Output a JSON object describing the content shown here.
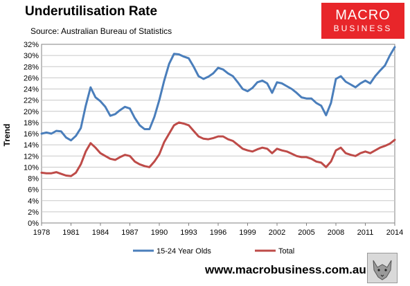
{
  "header": {
    "title": "Underutilisation Rate",
    "source": "Source: Australian Bureau of Statistics"
  },
  "logo": {
    "line1": "MACRO",
    "line2": "BUSINESS",
    "color": "#e8262a"
  },
  "footer": {
    "url": "www.macrobusiness.com.au",
    "icon": "wolf-icon"
  },
  "chart_data": {
    "type": "line",
    "title": "Underutilisation Rate",
    "ylabel": "Trend",
    "xlabel": "",
    "xlim": [
      1978,
      2014
    ],
    "ylim": [
      0,
      32
    ],
    "x_ticks": [
      "1978",
      "1981",
      "1984",
      "1987",
      "1990",
      "1993",
      "1996",
      "1999",
      "2002",
      "2005",
      "2008",
      "2011",
      "2014"
    ],
    "y_ticks": [
      "0%",
      "2%",
      "4%",
      "6%",
      "8%",
      "10%",
      "12%",
      "14%",
      "16%",
      "18%",
      "20%",
      "22%",
      "24%",
      "26%",
      "28%",
      "30%",
      "32%"
    ],
    "grid": true,
    "legend_position": "bottom",
    "series": [
      {
        "name": "15-24 Year Olds",
        "color": "#4a7ebb",
        "points": [
          [
            1978,
            16.0
          ],
          [
            1978.5,
            16.2
          ],
          [
            1979,
            16.0
          ],
          [
            1979.5,
            16.5
          ],
          [
            1980,
            16.4
          ],
          [
            1980.5,
            15.3
          ],
          [
            1981,
            14.8
          ],
          [
            1981.5,
            15.6
          ],
          [
            1982,
            17.0
          ],
          [
            1982.5,
            21.0
          ],
          [
            1983,
            24.3
          ],
          [
            1983.5,
            22.5
          ],
          [
            1984,
            21.8
          ],
          [
            1984.5,
            20.8
          ],
          [
            1985,
            19.2
          ],
          [
            1985.5,
            19.5
          ],
          [
            1986,
            20.2
          ],
          [
            1986.5,
            20.8
          ],
          [
            1987,
            20.5
          ],
          [
            1987.5,
            18.8
          ],
          [
            1988,
            17.5
          ],
          [
            1988.5,
            16.8
          ],
          [
            1989,
            16.8
          ],
          [
            1989.5,
            19.0
          ],
          [
            1990,
            22.0
          ],
          [
            1990.5,
            25.5
          ],
          [
            1991,
            28.5
          ],
          [
            1991.5,
            30.3
          ],
          [
            1992,
            30.2
          ],
          [
            1992.5,
            29.8
          ],
          [
            1993,
            29.5
          ],
          [
            1993.5,
            28.0
          ],
          [
            1994,
            26.3
          ],
          [
            1994.5,
            25.8
          ],
          [
            1995,
            26.2
          ],
          [
            1995.5,
            26.8
          ],
          [
            1996,
            27.8
          ],
          [
            1996.5,
            27.5
          ],
          [
            1997,
            26.8
          ],
          [
            1997.5,
            26.3
          ],
          [
            1998,
            25.2
          ],
          [
            1998.5,
            24.0
          ],
          [
            1999,
            23.6
          ],
          [
            1999.5,
            24.2
          ],
          [
            2000,
            25.2
          ],
          [
            2000.5,
            25.5
          ],
          [
            2001,
            25.0
          ],
          [
            2001.5,
            23.3
          ],
          [
            2002,
            25.2
          ],
          [
            2002.5,
            25.0
          ],
          [
            2003,
            24.5
          ],
          [
            2003.5,
            24.0
          ],
          [
            2004,
            23.3
          ],
          [
            2004.5,
            22.5
          ],
          [
            2005,
            22.3
          ],
          [
            2005.5,
            22.3
          ],
          [
            2006,
            21.5
          ],
          [
            2006.5,
            21.0
          ],
          [
            2007,
            19.3
          ],
          [
            2007.5,
            21.5
          ],
          [
            2008,
            25.8
          ],
          [
            2008.5,
            26.3
          ],
          [
            2009,
            25.3
          ],
          [
            2009.5,
            24.8
          ],
          [
            2010,
            24.3
          ],
          [
            2010.5,
            25.0
          ],
          [
            2011,
            25.5
          ],
          [
            2011.5,
            25.0
          ],
          [
            2012,
            26.3
          ],
          [
            2012.5,
            27.3
          ],
          [
            2013,
            28.2
          ],
          [
            2013.5,
            30.0
          ],
          [
            2014,
            31.5
          ]
        ]
      },
      {
        "name": "Total",
        "color": "#be4b48",
        "points": [
          [
            1978,
            9.0
          ],
          [
            1978.5,
            8.9
          ],
          [
            1979,
            8.9
          ],
          [
            1979.5,
            9.1
          ],
          [
            1980,
            8.8
          ],
          [
            1980.5,
            8.5
          ],
          [
            1981,
            8.4
          ],
          [
            1981.5,
            9.0
          ],
          [
            1982,
            10.5
          ],
          [
            1982.5,
            12.8
          ],
          [
            1983,
            14.3
          ],
          [
            1983.5,
            13.5
          ],
          [
            1984,
            12.5
          ],
          [
            1984.5,
            12.0
          ],
          [
            1985,
            11.5
          ],
          [
            1985.5,
            11.3
          ],
          [
            1986,
            11.8
          ],
          [
            1986.5,
            12.2
          ],
          [
            1987,
            12.0
          ],
          [
            1987.5,
            11.0
          ],
          [
            1988,
            10.5
          ],
          [
            1988.5,
            10.2
          ],
          [
            1989,
            10.0
          ],
          [
            1989.5,
            11.0
          ],
          [
            1990,
            12.3
          ],
          [
            1990.5,
            14.5
          ],
          [
            1991,
            16.0
          ],
          [
            1991.5,
            17.5
          ],
          [
            1992,
            18.0
          ],
          [
            1992.5,
            17.8
          ],
          [
            1993,
            17.5
          ],
          [
            1993.5,
            16.5
          ],
          [
            1994,
            15.5
          ],
          [
            1994.5,
            15.1
          ],
          [
            1995,
            15.0
          ],
          [
            1995.5,
            15.2
          ],
          [
            1996,
            15.5
          ],
          [
            1996.5,
            15.5
          ],
          [
            1997,
            15.0
          ],
          [
            1997.5,
            14.7
          ],
          [
            1998,
            14.0
          ],
          [
            1998.5,
            13.3
          ],
          [
            1999,
            13.0
          ],
          [
            1999.5,
            12.8
          ],
          [
            2000,
            13.2
          ],
          [
            2000.5,
            13.5
          ],
          [
            2001,
            13.3
          ],
          [
            2001.5,
            12.5
          ],
          [
            2002,
            13.3
          ],
          [
            2002.5,
            13.0
          ],
          [
            2003,
            12.8
          ],
          [
            2003.5,
            12.4
          ],
          [
            2004,
            12.0
          ],
          [
            2004.5,
            11.8
          ],
          [
            2005,
            11.8
          ],
          [
            2005.5,
            11.5
          ],
          [
            2006,
            11.0
          ],
          [
            2006.5,
            10.8
          ],
          [
            2007,
            10.0
          ],
          [
            2007.5,
            11.0
          ],
          [
            2008,
            13.0
          ],
          [
            2008.5,
            13.5
          ],
          [
            2009,
            12.5
          ],
          [
            2009.5,
            12.2
          ],
          [
            2010,
            12.0
          ],
          [
            2010.5,
            12.5
          ],
          [
            2011,
            12.8
          ],
          [
            2011.5,
            12.5
          ],
          [
            2012,
            13.0
          ],
          [
            2012.5,
            13.5
          ],
          [
            2013,
            13.8
          ],
          [
            2013.5,
            14.2
          ],
          [
            2014,
            14.9
          ]
        ]
      }
    ]
  }
}
